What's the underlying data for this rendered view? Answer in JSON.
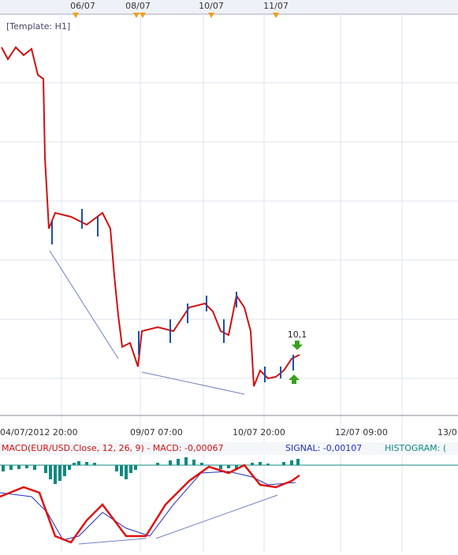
{
  "header": {
    "dates": [
      "06/07",
      "08/07",
      "10/07",
      "11/07"
    ],
    "template": "[Template: H1]"
  },
  "price_panel": {
    "annotation": "10,1"
  },
  "time_axis": {
    "labels": [
      "04/07/2012 20:00",
      "09/07 07:00",
      "10/07 20:00",
      "12/07 09:00",
      "13/0"
    ]
  },
  "macd_panel": {
    "macd": "MACD(EUR/USD.Close, 12, 26, 9) -  MACD: -0,00067",
    "signal": "SIGNAL: -0,00107",
    "histogram": "HISTOGRAM: ("
  }
}
